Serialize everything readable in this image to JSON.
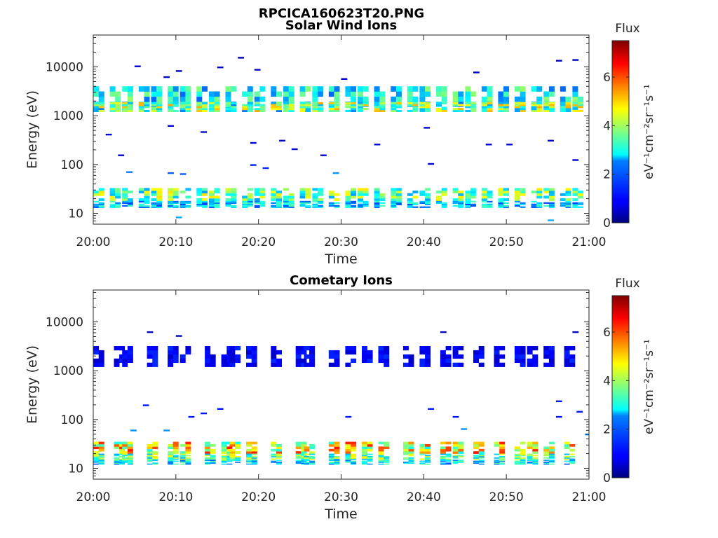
{
  "figure_title": "RPCICA160623T20.PNG",
  "chart_data": [
    {
      "type": "heatmap",
      "title": "Solar Wind Ions",
      "xlabel": "Time",
      "ylabel": "Energy (eV)",
      "x_ticks": [
        "20:00",
        "20:10",
        "20:20",
        "20:30",
        "20:40",
        "20:50",
        "21:00"
      ],
      "xlim_minutes": [
        0,
        60
      ],
      "y_ticks": [
        "10",
        "100",
        "1000",
        "10000"
      ],
      "y_tick_values": [
        10,
        100,
        1000,
        10000
      ],
      "ylim": [
        6,
        45000
      ],
      "yscale": "log",
      "colorbar": {
        "label": "Flux",
        "unit": "eV⁻¹cm⁻²sr⁻¹s⁻¹",
        "ticks": [
          "0",
          "2",
          "4",
          "6"
        ],
        "range": [
          0,
          7.5
        ],
        "colormap": "jet"
      },
      "sweep_start_minutes": [
        0,
        2,
        3.5,
        5.5,
        7,
        9,
        10.5,
        12.5,
        14,
        16,
        18,
        19.5,
        21.5,
        23,
        25,
        26.5,
        28.5,
        30.5,
        32,
        34,
        36,
        38,
        39.5,
        41.5,
        43.5,
        45,
        47,
        49,
        51,
        53,
        54.5,
        56.5,
        58
      ],
      "bands": [
        {
          "e_low": 1200,
          "e_high": 4000,
          "flux": 2.8
        },
        {
          "e_low": 1200,
          "e_high": 1900,
          "flux": 3.8
        },
        {
          "e_low": 18,
          "e_high": 33,
          "flux": 3.5
        },
        {
          "e_low": 13,
          "e_high": 18,
          "flux": 2.4
        }
      ],
      "sparse_points": [
        {
          "t": 5,
          "e": 10000,
          "flux": 0.5
        },
        {
          "t": 8.5,
          "e": 6000,
          "flux": 0.5
        },
        {
          "t": 10,
          "e": 8000,
          "flux": 0.5
        },
        {
          "t": 15,
          "e": 9500,
          "flux": 0.5
        },
        {
          "t": 17.5,
          "e": 15000,
          "flux": 0.5
        },
        {
          "t": 19.5,
          "e": 8500,
          "flux": 0.5
        },
        {
          "t": 30,
          "e": 5500,
          "flux": 0.5
        },
        {
          "t": 46,
          "e": 7500,
          "flux": 0.5
        },
        {
          "t": 56,
          "e": 13000,
          "flux": 0.5
        },
        {
          "t": 58,
          "e": 13500,
          "flux": 0.5
        },
        {
          "t": 1.5,
          "e": 400,
          "flux": 0.6
        },
        {
          "t": 3,
          "e": 150,
          "flux": 0.6
        },
        {
          "t": 9,
          "e": 600,
          "flux": 0.6
        },
        {
          "t": 13,
          "e": 450,
          "flux": 0.6
        },
        {
          "t": 19,
          "e": 270,
          "flux": 0.6
        },
        {
          "t": 22.5,
          "e": 300,
          "flux": 0.6
        },
        {
          "t": 24,
          "e": 200,
          "flux": 0.6
        },
        {
          "t": 27.5,
          "e": 150,
          "flux": 0.6
        },
        {
          "t": 34,
          "e": 250,
          "flux": 0.6
        },
        {
          "t": 40,
          "e": 550,
          "flux": 0.6
        },
        {
          "t": 40.5,
          "e": 100,
          "flux": 0.6
        },
        {
          "t": 47.5,
          "e": 250,
          "flux": 0.6
        },
        {
          "t": 50,
          "e": 250,
          "flux": 0.6
        },
        {
          "t": 55,
          "e": 300,
          "flux": 0.6
        },
        {
          "t": 58,
          "e": 120,
          "flux": 0.6
        },
        {
          "t": 9,
          "e": 65,
          "flux": 1.6
        },
        {
          "t": 10.5,
          "e": 62,
          "flux": 1.6
        },
        {
          "t": 4,
          "e": 68,
          "flux": 1.8
        },
        {
          "t": 19,
          "e": 95,
          "flux": 1.2
        },
        {
          "t": 20.5,
          "e": 82,
          "flux": 1.2
        },
        {
          "t": 29,
          "e": 65,
          "flux": 2
        },
        {
          "t": 55,
          "e": 7,
          "flux": 2.2
        },
        {
          "t": 10,
          "e": 8,
          "flux": 2.2
        }
      ]
    },
    {
      "type": "heatmap",
      "title": "Cometary Ions",
      "xlabel": "Time",
      "ylabel": "Energy (eV)",
      "x_ticks": [
        "20:00",
        "20:10",
        "20:20",
        "20:30",
        "20:40",
        "20:50",
        "21:00"
      ],
      "xlim_minutes": [
        0,
        60
      ],
      "y_ticks": [
        "10",
        "100",
        "1000",
        "10000"
      ],
      "y_tick_values": [
        10,
        100,
        1000,
        10000
      ],
      "ylim": [
        6,
        45000
      ],
      "yscale": "log",
      "colorbar": {
        "label": "Flux",
        "unit": "eV⁻¹cm⁻²sr⁻¹s⁻¹",
        "ticks": [
          "0",
          "2",
          "4",
          "6"
        ],
        "range": [
          0,
          7.5
        ],
        "colormap": "jet"
      },
      "sweep_start_minutes": [
        0,
        2.5,
        3.5,
        6.5,
        9,
        10.5,
        13.5,
        15.5,
        16.5,
        18.5,
        21.5,
        24.5,
        25.5,
        28.5,
        30.5,
        32.5,
        34.5,
        37.5,
        39.5,
        42,
        43.5,
        46,
        48.5,
        51,
        52.5,
        54.5,
        57
      ],
      "bands": [
        {
          "e_low": 1200,
          "e_high": 3200,
          "flux": 0.9
        },
        {
          "e_low": 20,
          "e_high": 35,
          "flux": 4.6
        },
        {
          "e_low": 15,
          "e_high": 20,
          "flux": 3.5
        },
        {
          "e_low": 12,
          "e_high": 15,
          "flux": 2.6
        }
      ],
      "sparse_points": [
        {
          "t": 6.5,
          "e": 6000,
          "flux": 0.5
        },
        {
          "t": 10,
          "e": 5000,
          "flux": 0.5
        },
        {
          "t": 42,
          "e": 6000,
          "flux": 0.5
        },
        {
          "t": 58,
          "e": 6000,
          "flux": 0.5
        },
        {
          "t": 6,
          "e": 190,
          "flux": 1.1
        },
        {
          "t": 11.5,
          "e": 110,
          "flux": 1.1
        },
        {
          "t": 13,
          "e": 130,
          "flux": 1.1
        },
        {
          "t": 15,
          "e": 160,
          "flux": 1.1
        },
        {
          "t": 30.5,
          "e": 110,
          "flux": 1.1
        },
        {
          "t": 40.5,
          "e": 160,
          "flux": 1.1
        },
        {
          "t": 43.5,
          "e": 110,
          "flux": 1.1
        },
        {
          "t": 56,
          "e": 230,
          "flux": 1.1
        },
        {
          "t": 56,
          "e": 110,
          "flux": 1.1
        },
        {
          "t": 58.5,
          "e": 140,
          "flux": 1.1
        },
        {
          "t": 4.5,
          "e": 58,
          "flux": 2
        },
        {
          "t": 8.5,
          "e": 58,
          "flux": 2
        },
        {
          "t": 44.5,
          "e": 62,
          "flux": 2
        },
        {
          "t": 59.5,
          "e": 48,
          "flux": 2
        }
      ]
    }
  ]
}
